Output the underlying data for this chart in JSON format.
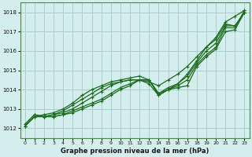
{
  "background_color": "#d4eeed",
  "grid_color": "#aacfcd",
  "line_color": "#1a6b1a",
  "marker_color": "#1a6b1a",
  "title": "Graphe pression niveau de la mer (hPa)",
  "xlim": [
    -0.5,
    23.5
  ],
  "ylim": [
    1011.5,
    1018.5
  ],
  "yticks": [
    1012,
    1013,
    1014,
    1015,
    1016,
    1017,
    1018
  ],
  "xticks": [
    0,
    1,
    2,
    3,
    4,
    5,
    6,
    7,
    8,
    9,
    10,
    11,
    12,
    13,
    14,
    15,
    16,
    17,
    18,
    19,
    20,
    21,
    22,
    23
  ],
  "series": [
    [
      1012.1,
      1012.6,
      1012.6,
      1012.6,
      1012.7,
      1012.8,
      1013.0,
      1013.2,
      1013.4,
      1013.7,
      1014.0,
      1014.2,
      1014.5,
      1014.5,
      1013.8,
      1014.0,
      1014.1,
      1014.2,
      1015.2,
      1015.7,
      1016.1,
      1017.0,
      1017.1,
      1018.0
    ],
    [
      1012.1,
      1012.6,
      1012.6,
      1012.6,
      1012.7,
      1012.9,
      1013.1,
      1013.3,
      1013.5,
      1013.8,
      1014.1,
      1014.3,
      1014.5,
      1014.5,
      1013.8,
      1014.1,
      1014.3,
      1014.7,
      1015.4,
      1016.0,
      1016.4,
      1017.3,
      1017.3,
      1018.0
    ],
    [
      1012.2,
      1012.7,
      1012.6,
      1012.7,
      1012.8,
      1013.0,
      1013.3,
      1013.6,
      1013.9,
      1014.2,
      1014.4,
      1014.5,
      1014.5,
      1014.4,
      1014.2,
      1014.5,
      1014.8,
      1015.2,
      1015.7,
      1016.2,
      1016.6,
      1017.4,
      1017.3,
      1018.0
    ],
    [
      1012.2,
      1012.7,
      1012.6,
      1012.7,
      1012.9,
      1013.2,
      1013.5,
      1013.8,
      1014.1,
      1014.3,
      1014.4,
      1014.5,
      1014.5,
      1014.3,
      1013.7,
      1014.0,
      1014.2,
      1014.5,
      1015.3,
      1015.8,
      1016.2,
      1017.2,
      1017.2,
      1018.1
    ]
  ],
  "series_top": [
    1012.1,
    1012.6,
    1012.7,
    1012.8,
    1013.0,
    1013.3,
    1013.7,
    1014.0,
    1014.2,
    1014.4,
    1014.5,
    1014.6,
    1014.7,
    1014.5,
    1013.7,
    1014.0,
    1014.3,
    1014.8,
    1015.5,
    1016.2,
    1016.7,
    1017.5,
    1017.8,
    1018.1
  ]
}
